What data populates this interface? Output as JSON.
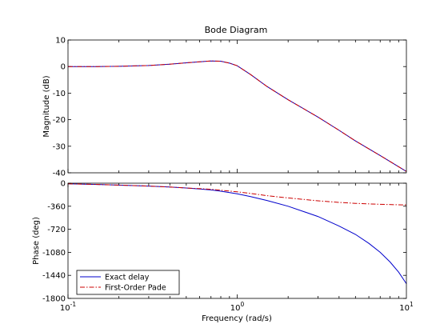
{
  "chart_data": [
    {
      "type": "line",
      "title": "Bode Diagram",
      "ylabel": "Magnitude (dB)",
      "xscale": "log",
      "xlim": [
        0.1,
        10
      ],
      "ylim": [
        -40,
        10
      ],
      "yticks": [
        10,
        0,
        -10,
        -20,
        -30,
        -40
      ],
      "grid": false,
      "series": [
        {
          "name": "Exact delay",
          "color": "#0000cc",
          "style": "solid",
          "x": [
            0.1,
            0.15,
            0.2,
            0.3,
            0.4,
            0.5,
            0.6,
            0.7,
            0.8,
            0.9,
            1.0,
            1.2,
            1.5,
            2,
            3,
            4,
            5,
            7,
            10
          ],
          "y": [
            0,
            0,
            0.1,
            0.4,
            0.9,
            1.4,
            1.8,
            2.1,
            2.0,
            1.3,
            0.3,
            -3,
            -7.5,
            -12.5,
            -19,
            -24,
            -28,
            -33.5,
            -39.5
          ]
        },
        {
          "name": "First-Order Pade",
          "color": "#cc0000",
          "style": "dashdot",
          "x": [
            0.1,
            0.15,
            0.2,
            0.3,
            0.4,
            0.5,
            0.6,
            0.7,
            0.8,
            0.9,
            1.0,
            1.2,
            1.5,
            2,
            3,
            4,
            5,
            7,
            10
          ],
          "y": [
            0,
            0,
            0.1,
            0.4,
            0.9,
            1.4,
            1.8,
            2.1,
            2.0,
            1.3,
            0.3,
            -3,
            -7.5,
            -12.5,
            -19,
            -24,
            -28,
            -33.5,
            -39.5
          ]
        }
      ]
    },
    {
      "type": "line",
      "xlabel": "Frequency  (rad/s)",
      "ylabel": "Phase (deg)",
      "xscale": "log",
      "xlim": [
        0.1,
        10
      ],
      "ylim": [
        -1800,
        0
      ],
      "yticks": [
        0,
        -360,
        -720,
        -1080,
        -1440,
        -1800
      ],
      "xticks": [
        {
          "base": "10",
          "exp": "-1",
          "value": 0.1
        },
        {
          "base": "10",
          "exp": "0",
          "value": 1
        },
        {
          "base": "10",
          "exp": "1",
          "value": 10
        }
      ],
      "grid": false,
      "legend": "bottom-left",
      "series": [
        {
          "name": "Exact delay",
          "color": "#0000cc",
          "style": "solid",
          "x": [
            0.1,
            0.15,
            0.2,
            0.3,
            0.4,
            0.5,
            0.6,
            0.7,
            0.8,
            1.0,
            1.2,
            1.5,
            2,
            3,
            4,
            5,
            6,
            7,
            8,
            9,
            10
          ],
          "y": [
            -10,
            -20,
            -30,
            -45,
            -60,
            -75,
            -90,
            -105,
            -125,
            -165,
            -210,
            -270,
            -360,
            -520,
            -670,
            -800,
            -940,
            -1080,
            -1230,
            -1390,
            -1570
          ]
        },
        {
          "name": "First-Order Pade",
          "color": "#cc0000",
          "style": "dashdot",
          "x": [
            0.1,
            0.15,
            0.2,
            0.3,
            0.4,
            0.5,
            0.6,
            0.7,
            0.8,
            1.0,
            1.2,
            1.5,
            2,
            3,
            4,
            5,
            7,
            10
          ],
          "y": [
            -10,
            -20,
            -30,
            -45,
            -60,
            -75,
            -85,
            -95,
            -110,
            -135,
            -160,
            -195,
            -230,
            -275,
            -300,
            -315,
            -330,
            -340
          ]
        }
      ]
    }
  ]
}
